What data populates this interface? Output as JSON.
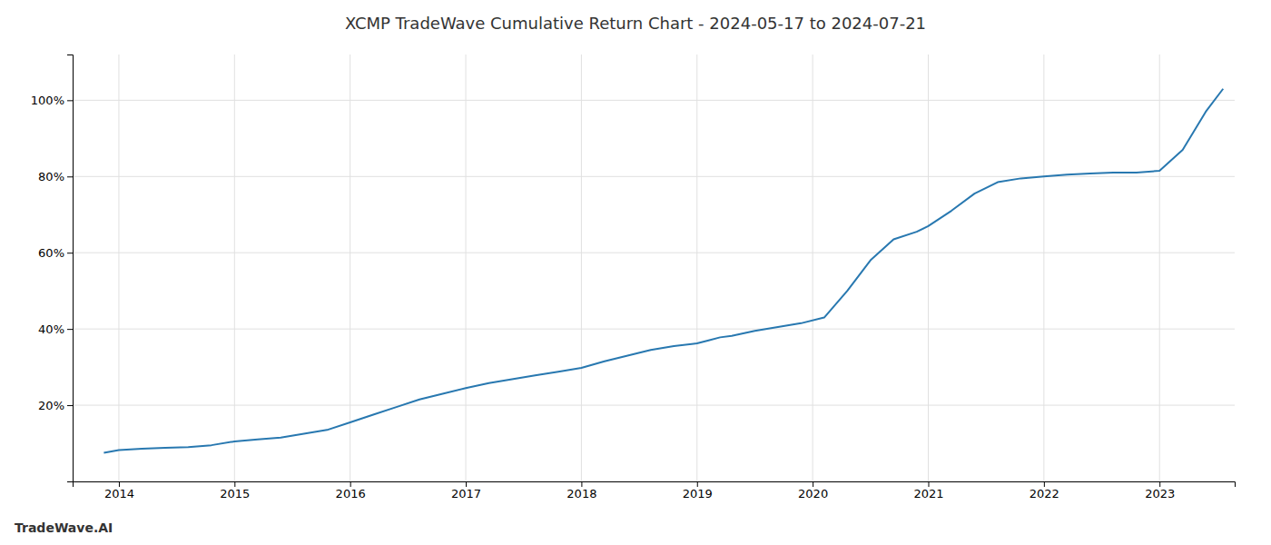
{
  "chart_data": {
    "type": "line",
    "title": "XCMP TradeWave Cumulative Return Chart - 2024-05-17 to 2024-07-21",
    "annotations": [
      "TradeWave.AI"
    ],
    "color": "#2878b0",
    "grid": true,
    "x": [
      2013.87,
      2014.0,
      2014.2,
      2014.4,
      2014.6,
      2014.8,
      2015.0,
      2015.2,
      2015.4,
      2015.6,
      2015.8,
      2016.0,
      2016.2,
      2016.4,
      2016.6,
      2016.8,
      2017.0,
      2017.2,
      2017.4,
      2017.6,
      2017.8,
      2018.0,
      2018.2,
      2018.4,
      2018.6,
      2018.8,
      2019.0,
      2019.1,
      2019.2,
      2019.3,
      2019.5,
      2019.7,
      2019.9,
      2020.1,
      2020.3,
      2020.5,
      2020.7,
      2020.9,
      2021.0,
      2021.2,
      2021.4,
      2021.6,
      2021.8,
      2022.0,
      2022.2,
      2022.4,
      2022.6,
      2022.8,
      2023.0,
      2023.2,
      2023.4,
      2023.55
    ],
    "values": [
      0.075,
      0.082,
      0.086,
      0.088,
      0.09,
      0.095,
      0.105,
      0.11,
      0.115,
      0.125,
      0.135,
      0.155,
      0.175,
      0.195,
      0.215,
      0.23,
      0.245,
      0.258,
      0.268,
      0.278,
      0.288,
      0.298,
      0.315,
      0.33,
      0.345,
      0.355,
      0.362,
      0.37,
      0.378,
      0.382,
      0.395,
      0.405,
      0.415,
      0.43,
      0.5,
      0.58,
      0.635,
      0.655,
      0.67,
      0.71,
      0.755,
      0.785,
      0.795,
      0.8,
      0.805,
      0.808,
      0.81,
      0.81,
      0.815,
      0.87,
      0.97,
      1.03
    ],
    "xlim": [
      2013.6,
      2023.65
    ],
    "ylim": [
      0.0,
      1.12
    ],
    "xticks": [
      2014,
      2015,
      2016,
      2017,
      2018,
      2019,
      2020,
      2021,
      2022,
      2023
    ],
    "yticks": [
      {
        "value": 0.2,
        "label": "20%"
      },
      {
        "value": 0.4,
        "label": "40%"
      },
      {
        "value": 0.6,
        "label": "60%"
      },
      {
        "value": 0.8,
        "label": "80%"
      },
      {
        "value": 1.0,
        "label": "100%"
      }
    ]
  }
}
